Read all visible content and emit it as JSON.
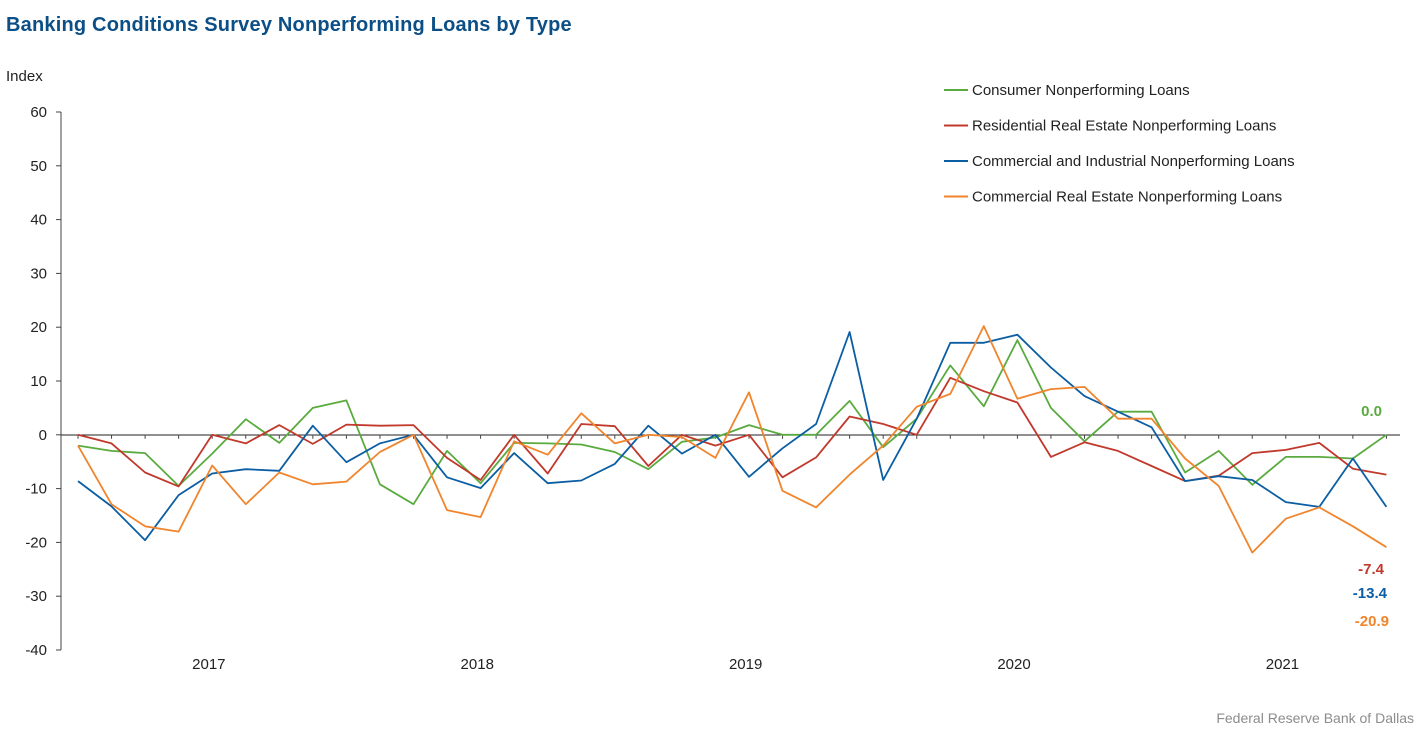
{
  "title": "Banking Conditions Survey Nonperforming Loans by Type",
  "source": "Federal Reserve Bank of Dallas",
  "chart_data": {
    "type": "line",
    "title": "Banking Conditions Survey Nonperforming Loans by Type",
    "ylabel": "Index",
    "xlabel": "",
    "ylim": [
      -40,
      60
    ],
    "yticks": [
      60,
      50,
      40,
      30,
      20,
      10,
      0,
      -10,
      -20,
      -30,
      -40
    ],
    "year_labels": [
      "2017",
      "2018",
      "2019",
      "2020",
      "2021"
    ],
    "legend_position": "top-right",
    "grid": false,
    "series": [
      {
        "name": "Consumer Nonperforming Loans",
        "color": "#5aab3f",
        "end_label": "0.0",
        "values": [
          -2.0,
          -3.0,
          -3.4,
          -9.5,
          -3.5,
          2.9,
          -1.5,
          5.0,
          6.4,
          -9.2,
          -12.9,
          -3.0,
          -9.0,
          -1.5,
          -1.6,
          -1.8,
          -3.2,
          -6.4,
          -1.3,
          -0.5,
          1.8,
          0.0,
          0.0,
          6.3,
          -2.3,
          3.0,
          12.9,
          5.3,
          17.6,
          5.0,
          -1.2,
          4.3,
          4.3,
          -7.0,
          -3.0,
          -9.3,
          -4.1,
          -4.1,
          -4.4,
          0.0
        ]
      },
      {
        "name": "Residential Real Estate Nonperforming Loans",
        "color": "#c0392b",
        "end_label": "-7.4",
        "values": [
          0.0,
          -1.6,
          -7.0,
          -9.6,
          0.0,
          -1.6,
          1.8,
          -1.7,
          1.9,
          1.7,
          1.8,
          -4.3,
          -8.4,
          0.0,
          -7.2,
          2.0,
          1.6,
          -5.8,
          0.0,
          -2.0,
          0.0,
          -7.9,
          -4.2,
          3.4,
          2.0,
          0.0,
          10.6,
          8.1,
          6.0,
          -4.1,
          -1.4,
          -3.0,
          -5.8,
          -8.6,
          -7.6,
          -3.4,
          -2.8,
          -1.5,
          -6.3,
          -7.4
        ]
      },
      {
        "name": "Commercial and Industrial Nonperforming Loans",
        "color": "#0b5ea3",
        "end_label": "-13.4",
        "values": [
          -8.6,
          -13.3,
          -19.6,
          -11.2,
          -7.2,
          -6.4,
          -6.7,
          1.7,
          -5.1,
          -1.6,
          0.0,
          -7.9,
          -9.9,
          -3.4,
          -9.0,
          -8.5,
          -5.4,
          1.7,
          -3.5,
          0.0,
          -7.8,
          -2.5,
          2.0,
          19.1,
          -8.4,
          3.0,
          17.1,
          17.1,
          18.6,
          12.5,
          7.2,
          4.3,
          1.4,
          -8.6,
          -7.7,
          -8.4,
          -12.5,
          -13.4,
          -4.4,
          -13.4
        ]
      },
      {
        "name": "Commercial Real Estate Nonperforming Loans",
        "color": "#f0852d",
        "end_label": "-20.9",
        "values": [
          -2.0,
          -12.9,
          -17.0,
          -18.0,
          -5.7,
          -12.9,
          -7.0,
          -9.2,
          -8.7,
          -3.2,
          0.0,
          -14.0,
          -15.3,
          -1.2,
          -3.7,
          4.0,
          -1.6,
          0.0,
          -0.4,
          -4.3,
          7.9,
          -10.4,
          -13.5,
          -7.4,
          -2.0,
          5.2,
          7.6,
          20.2,
          6.7,
          8.5,
          8.9,
          3.0,
          3.0,
          -4.4,
          -9.5,
          -21.9,
          -15.6,
          -13.5,
          -17.0,
          -20.9
        ]
      }
    ]
  }
}
